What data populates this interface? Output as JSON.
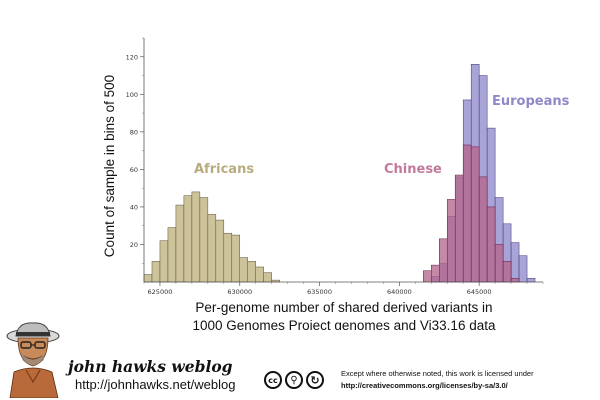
{
  "chart_data": {
    "type": "histogram",
    "title": "",
    "ylabel": "Count of sample in bins of 500",
    "xlabel_lines": [
      "Per-genome number of shared derived variants in",
      "1000 Genomes Project genomes and Vi33.16 data"
    ],
    "xlim": [
      624000,
      649000
    ],
    "ylim": [
      0,
      130
    ],
    "bin_width": 500,
    "x_ticks": [
      625000,
      630000,
      635000,
      640000,
      645000
    ],
    "x_tick_labels": [
      "625000",
      "630000",
      "635000",
      "640000",
      "645000"
    ],
    "y_ticks": [
      20,
      40,
      60,
      80,
      100,
      120
    ],
    "y_tick_labels": [
      "20",
      "40",
      "60",
      "80",
      "100",
      "120"
    ],
    "series": [
      {
        "name": "Africans",
        "color": "#c4b88a",
        "stroke": "#5a5035",
        "label_color": "#b8ab7e",
        "bins": [
          {
            "start": 624000,
            "count": 4
          },
          {
            "start": 624500,
            "count": 11
          },
          {
            "start": 625000,
            "count": 22
          },
          {
            "start": 625500,
            "count": 29
          },
          {
            "start": 626000,
            "count": 41
          },
          {
            "start": 626500,
            "count": 46
          },
          {
            "start": 627000,
            "count": 48
          },
          {
            "start": 627500,
            "count": 45
          },
          {
            "start": 628000,
            "count": 36
          },
          {
            "start": 628500,
            "count": 33
          },
          {
            "start": 629000,
            "count": 26
          },
          {
            "start": 629500,
            "count": 25
          },
          {
            "start": 630000,
            "count": 13
          },
          {
            "start": 630500,
            "count": 11
          },
          {
            "start": 631000,
            "count": 8
          },
          {
            "start": 631500,
            "count": 5
          },
          {
            "start": 632000,
            "count": 1
          }
        ]
      },
      {
        "name": "Europeans",
        "color": "#9a94d0",
        "stroke": "#3c3675",
        "label_color": "#8f88c9",
        "bins": [
          {
            "start": 642000,
            "count": 3
          },
          {
            "start": 642500,
            "count": 10
          },
          {
            "start": 643000,
            "count": 35
          },
          {
            "start": 643500,
            "count": 56
          },
          {
            "start": 644000,
            "count": 97
          },
          {
            "start": 644500,
            "count": 116
          },
          {
            "start": 645000,
            "count": 110
          },
          {
            "start": 645500,
            "count": 82
          },
          {
            "start": 646000,
            "count": 45
          },
          {
            "start": 646500,
            "count": 31
          },
          {
            "start": 647000,
            "count": 21
          },
          {
            "start": 647500,
            "count": 14
          },
          {
            "start": 648000,
            "count": 2
          }
        ]
      },
      {
        "name": "Chinese",
        "color": "#b5678d",
        "stroke": "#5c1f45",
        "label_color": "#c27a9c",
        "bins": [
          {
            "start": 641500,
            "count": 6
          },
          {
            "start": 642000,
            "count": 9
          },
          {
            "start": 642500,
            "count": 23
          },
          {
            "start": 643000,
            "count": 44
          },
          {
            "start": 643500,
            "count": 57
          },
          {
            "start": 644000,
            "count": 73
          },
          {
            "start": 644500,
            "count": 72
          },
          {
            "start": 645000,
            "count": 56
          },
          {
            "start": 645500,
            "count": 40
          },
          {
            "start": 646000,
            "count": 20
          },
          {
            "start": 646500,
            "count": 11
          },
          {
            "start": 647000,
            "count": 2
          }
        ]
      }
    ]
  },
  "footer": {
    "blog_title": "john hawks weblog",
    "blog_url": "http://johnhawks.net/weblog",
    "license_line1": "Except where otherwise noted, this work is licensed under",
    "license_url": "http://creativecommons.org/licenses/by-sa/3.0/",
    "cc_icons": [
      "cc-icon",
      "by-icon",
      "sa-icon"
    ],
    "cc_glyphs": [
      "cc",
      "⚲",
      "↻"
    ]
  }
}
